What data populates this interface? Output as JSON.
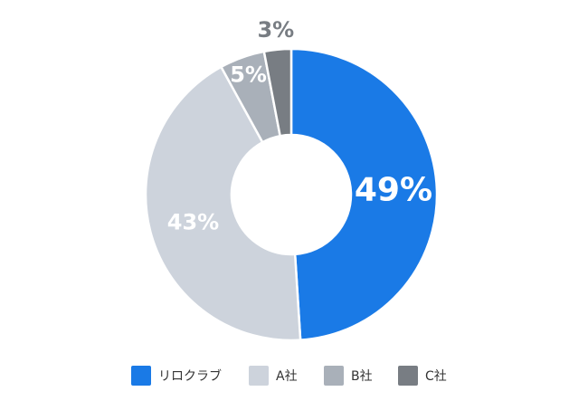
{
  "chart_data": {
    "type": "pie",
    "categories": [
      "リロクラブ",
      "A社",
      "B社",
      "C社"
    ],
    "values": [
      49,
      43,
      5,
      3
    ],
    "value_labels": [
      "49%",
      "43%",
      "5%",
      "3%"
    ],
    "colors": [
      "#1a7ae6",
      "#cdd3dc",
      "#a9b0b9",
      "#787d83"
    ]
  }
}
